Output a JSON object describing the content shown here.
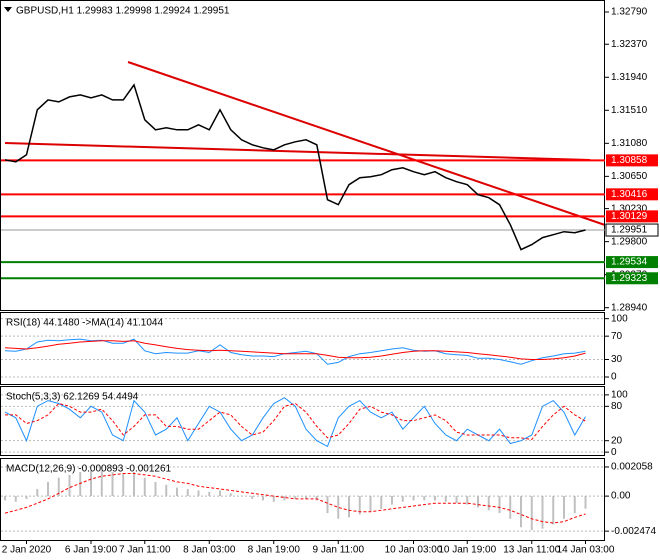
{
  "chart_data": [
    {
      "type": "line",
      "title": "GBPUSD,H1 1.29983 1.29998 1.29924 1.29951",
      "categories": [
        null,
        null,
        "2 Jan 2020",
        null,
        null,
        null,
        null,
        null,
        "6 Jan 19:00",
        null,
        null,
        null,
        null,
        "7 Jan 11:00",
        null,
        null,
        null,
        null,
        null,
        "8 Jan 03:00",
        null,
        null,
        null,
        null,
        null,
        "8 Jan 19:00",
        null,
        null,
        null,
        null,
        null,
        "9 Jan 11:00",
        null,
        null,
        null,
        null,
        null,
        null,
        "10 Jan 03:00",
        null,
        null,
        null,
        null,
        "10 Jan 19:00",
        null,
        null,
        null,
        null,
        null,
        "13 Jan 11:00",
        null,
        null,
        null,
        null,
        "14 Jan 03:00"
      ],
      "series": [
        {
          "color": "#000000",
          "values": [
            1.30866,
            1.3084,
            1.30931,
            1.31516,
            1.31646,
            1.3162,
            1.31685,
            1.31711,
            1.31672,
            1.31711,
            1.31646,
            1.31646,
            1.31841,
            1.31386,
            1.31256,
            1.31282,
            1.31256,
            1.31256,
            1.31321,
            1.31256,
            1.31516,
            1.31256,
            1.31126,
            1.31061,
            1.31022,
            1.30996,
            1.31061,
            1.311,
            1.31126,
            1.31061,
            1.30346,
            1.30281,
            1.30541,
            1.30632,
            1.30645,
            1.30671,
            1.30736,
            1.30762,
            1.3071,
            1.30671,
            1.3071,
            1.30632,
            1.3058,
            1.30541,
            1.30411,
            1.30372,
            1.30281,
            1.30021,
            1.29696,
            1.29761,
            1.29852,
            1.29891,
            1.2993,
            1.29917,
            1.29951
          ]
        }
      ],
      "hlines": [
        {
          "value": 1.30858,
          "color": "#ff0000"
        },
        {
          "value": 1.30416,
          "color": "#ff0000"
        },
        {
          "value": 1.30129,
          "color": "#ff0000"
        },
        {
          "value": 1.29534,
          "color": "#008000"
        },
        {
          "value": 1.29323,
          "color": "#008000"
        }
      ],
      "current": 1.29951,
      "ylim": [
        1.2891,
        1.3292
      ],
      "yticks": [
        {
          "value": 1.3279,
          "label": "1.32790"
        },
        {
          "value": 1.3237,
          "label": "1.32370"
        },
        {
          "value": 1.3194,
          "label": "1.31940"
        },
        {
          "value": 1.3151,
          "label": "1.31510"
        },
        {
          "value": 1.3108,
          "label": "1.31080"
        },
        {
          "value": 1.3065,
          "label": "1.30650"
        },
        {
          "value": 1.3023,
          "label": "1.30230"
        },
        {
          "value": 1.298,
          "label": "1.29800"
        },
        {
          "value": 1.2937,
          "label": "1.29370"
        },
        {
          "value": 1.2894,
          "label": "1.28940"
        }
      ]
    },
    {
      "type": "line",
      "title": "RSI(18) 44.1480 ->MA(14) 41.1044",
      "series": [
        {
          "color": "#1e90ff",
          "values": [
            45,
            44,
            48,
            60,
            63,
            62,
            64,
            65,
            62,
            63,
            58,
            58,
            65,
            45,
            40,
            42,
            41,
            41,
            45,
            42,
            55,
            42,
            38,
            36,
            36,
            35,
            40,
            42,
            44,
            40,
            22,
            25,
            35,
            40,
            42,
            45,
            48,
            50,
            46,
            44,
            45,
            40,
            38,
            37,
            32,
            32,
            30,
            26,
            22,
            28,
            33,
            36,
            40,
            41,
            44
          ]
        },
        {
          "color": "#ff0000",
          "values": [
            50,
            49,
            48,
            50,
            53,
            56,
            58,
            60,
            61,
            62,
            62,
            61,
            62,
            58,
            55,
            52,
            49,
            47,
            46,
            45,
            46,
            45,
            44,
            43,
            42,
            41,
            40,
            40,
            40,
            40,
            37,
            34,
            33,
            33,
            34,
            36,
            39,
            42,
            44,
            45,
            45,
            44,
            43,
            42,
            40,
            38,
            36,
            34,
            31,
            30,
            30,
            31,
            33,
            36,
            41
          ]
        }
      ],
      "ylim": [
        -12,
        108
      ],
      "yticks": [
        100,
        70,
        30,
        0
      ]
    },
    {
      "type": "line",
      "title": "Stoch(5,3,3) 62.1269 54.4494",
      "series": [
        {
          "color": "#1e90ff",
          "values": [
            70,
            60,
            20,
            80,
            90,
            85,
            75,
            60,
            80,
            70,
            30,
            20,
            90,
            70,
            30,
            40,
            60,
            20,
            50,
            80,
            70,
            40,
            20,
            30,
            60,
            85,
            95,
            80,
            40,
            20,
            10,
            60,
            80,
            90,
            70,
            60,
            70,
            40,
            60,
            80,
            50,
            30,
            20,
            40,
            30,
            20,
            40,
            15,
            20,
            30,
            80,
            90,
            70,
            30,
            62
          ]
        },
        {
          "color": "#ff0000",
          "dashed": true,
          "values": [
            65,
            65,
            50,
            55,
            65,
            85,
            80,
            70,
            70,
            75,
            55,
            30,
            45,
            65,
            65,
            45,
            45,
            40,
            40,
            55,
            70,
            65,
            45,
            30,
            35,
            55,
            80,
            85,
            70,
            45,
            25,
            30,
            50,
            75,
            80,
            70,
            65,
            55,
            55,
            60,
            65,
            55,
            35,
            30,
            30,
            30,
            30,
            25,
            25,
            22,
            45,
            65,
            80,
            65,
            54
          ]
        }
      ],
      "ylim": [
        -5,
        112
      ],
      "yticks": [
        100,
        80,
        20,
        0
      ]
    },
    {
      "type": "macd",
      "title": "MACD(12,26,9) -0.000893 -0.001261",
      "series": [
        {
          "color": "#c0c0c0",
          "bars": true,
          "values": [
            -0.0003,
            -0.0004,
            -0.0002,
            0.0005,
            0.001,
            0.0013,
            0.0015,
            0.0017,
            0.0018,
            0.0018,
            0.0017,
            0.0016,
            0.0017,
            0.0013,
            0.001,
            0.0008,
            0.0006,
            0.0005,
            0.0004,
            0.0003,
            0.0004,
            0.0002,
            0,
            -0.0002,
            -0.0003,
            -0.0004,
            -0.0003,
            -0.0002,
            -0.0002,
            -0.0003,
            -0.0012,
            -0.0016,
            -0.0015,
            -0.0013,
            -0.0011,
            -0.0009,
            -0.0006,
            -0.0004,
            -0.0003,
            -0.0003,
            -0.0003,
            -0.0004,
            -0.0005,
            -0.0006,
            -0.0008,
            -0.001,
            -0.0012,
            -0.0016,
            -0.0022,
            -0.0024,
            -0.0023,
            -0.002,
            -0.0016,
            -0.0012,
            -0.000893
          ]
        },
        {
          "color": "#ff0000",
          "dashed": true,
          "values": [
            -0.0012,
            -0.001,
            -0.0008,
            -0.0005,
            -0.0002,
            0.0002,
            0.0006,
            0.0009,
            0.0012,
            0.0014,
            0.0015,
            0.0016,
            0.0016,
            0.0015,
            0.0014,
            0.0012,
            0.001,
            0.0009,
            0.0007,
            0.0006,
            0.0005,
            0.0004,
            0.0003,
            0.0002,
            0.0001,
            0,
            -0.0001,
            -0.0002,
            -0.0002,
            -0.0002,
            -0.0005,
            -0.0008,
            -0.001,
            -0.0011,
            -0.0011,
            -0.001,
            -0.0009,
            -0.0008,
            -0.0007,
            -0.0006,
            -0.0005,
            -0.0005,
            -0.0005,
            -0.0005,
            -0.0006,
            -0.0007,
            -0.0008,
            -0.001,
            -0.0013,
            -0.0016,
            -0.0018,
            -0.0019,
            -0.0018,
            -0.0015,
            -0.001261
          ]
        }
      ],
      "ylim": [
        -0.0031,
        0.00255
      ],
      "yticks": [
        0.002058,
        {
          "value": 0,
          "label": "0.00"
        },
        -0.002474
      ]
    }
  ]
}
